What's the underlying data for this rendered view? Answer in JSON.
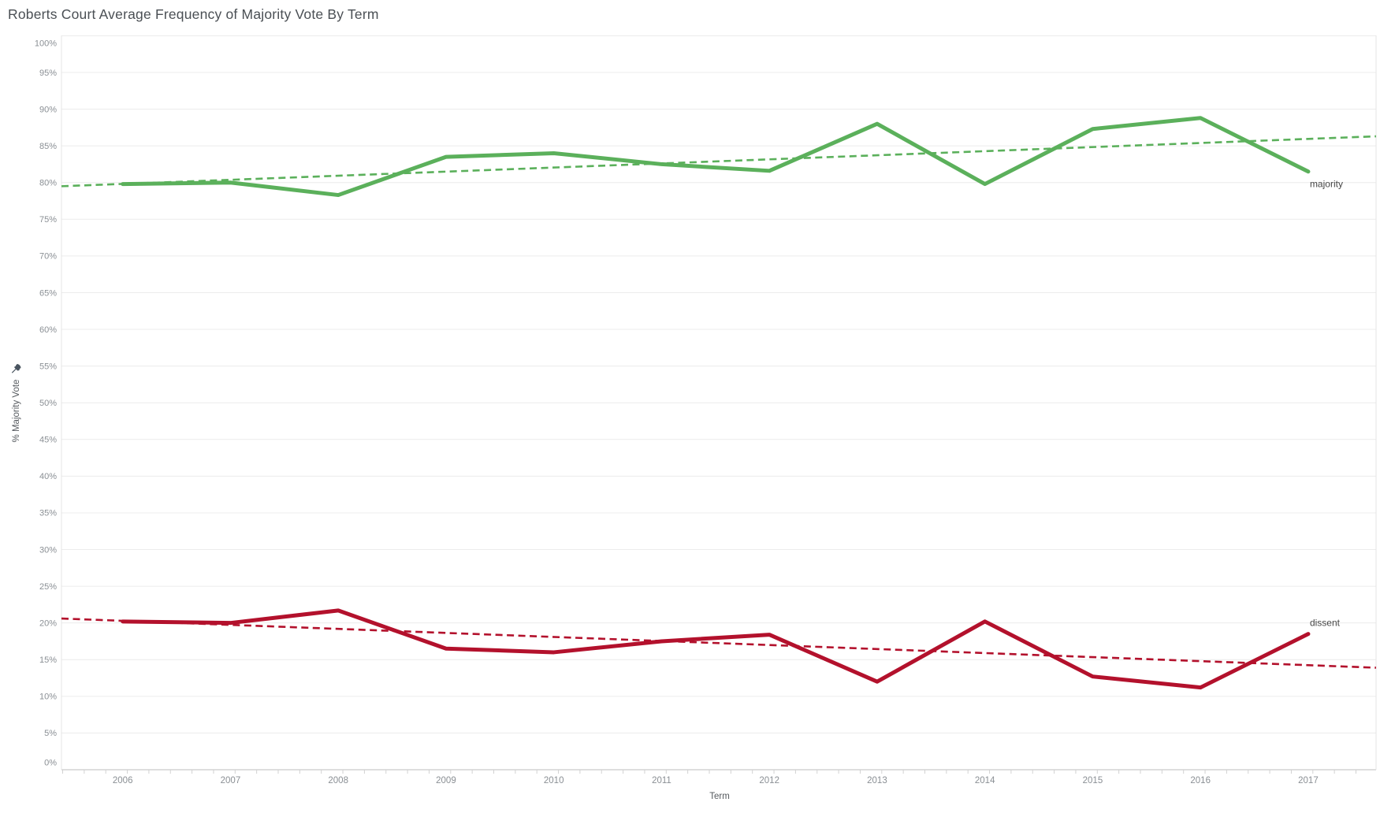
{
  "title": "Roberts Court Average Frequency of Majority Vote By Term",
  "chart_data": {
    "type": "line",
    "title": "Roberts Court Average Frequency of Majority Vote By Term",
    "xlabel": "Term",
    "ylabel": "% Majority Vote",
    "x": [
      2006,
      2007,
      2008,
      2009,
      2010,
      2011,
      2012,
      2013,
      2014,
      2015,
      2016,
      2017
    ],
    "x_tick_labels": [
      "2006",
      "2007",
      "2008",
      "2009",
      "2010",
      "2011",
      "2012",
      "2013",
      "2014",
      "2015",
      "2016",
      "2017"
    ],
    "y_tick_labels": [
      "0%",
      "5%",
      "10%",
      "15%",
      "20%",
      "25%",
      "30%",
      "35%",
      "40%",
      "45%",
      "50%",
      "55%",
      "60%",
      "65%",
      "70%",
      "75%",
      "80%",
      "85%",
      "90%",
      "95%",
      "100%"
    ],
    "ylim": [
      0,
      100
    ],
    "ytick_step": 5,
    "grid": "horizontal",
    "legend_position": "line-end-labels",
    "y_axis_pinned": true,
    "series": [
      {
        "name": "majority",
        "color": "#5bb05b",
        "values": [
          79.8,
          80.0,
          78.3,
          83.5,
          84.0,
          82.5,
          81.6,
          88.0,
          79.8,
          87.3,
          88.8,
          81.5
        ],
        "trend": {
          "style": "dashed",
          "start_value": 79.5,
          "end_value": 86.3
        }
      },
      {
        "name": "dissent",
        "color": "#b3112c",
        "values": [
          20.2,
          20.0,
          21.7,
          16.5,
          16.0,
          17.5,
          18.4,
          12.0,
          20.2,
          12.7,
          11.2,
          18.5
        ],
        "trend": {
          "style": "dashed",
          "start_value": 20.6,
          "end_value": 13.9
        }
      }
    ]
  },
  "colors": {
    "grid": "#ececec",
    "axis_line": "#c9c9c9",
    "minor_tick": "#d2d2d2",
    "plot_border": "#e4e4e4",
    "tick_label": "#8a8f94",
    "axis_title": "#55595e",
    "title": "#4a4f54",
    "series_label": "#454545",
    "pin_icon": "#4a5560"
  }
}
